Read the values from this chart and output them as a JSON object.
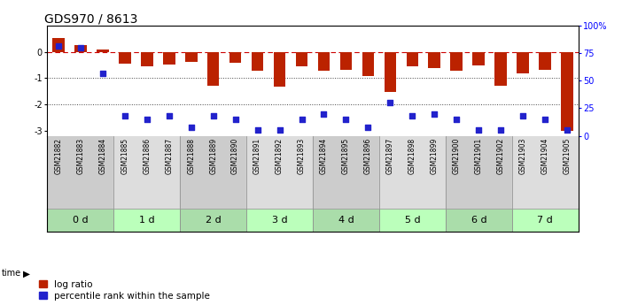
{
  "title": "GDS970 / 8613",
  "samples": [
    "GSM21882",
    "GSM21883",
    "GSM21884",
    "GSM21885",
    "GSM21886",
    "GSM21887",
    "GSM21888",
    "GSM21889",
    "GSM21890",
    "GSM21891",
    "GSM21892",
    "GSM21893",
    "GSM21894",
    "GSM21895",
    "GSM21896",
    "GSM21897",
    "GSM21898",
    "GSM21899",
    "GSM21900",
    "GSM21901",
    "GSM21902",
    "GSM21903",
    "GSM21904",
    "GSM21905"
  ],
  "log_ratio": [
    0.55,
    0.28,
    0.1,
    -0.45,
    -0.55,
    -0.48,
    -0.38,
    -1.28,
    -0.42,
    -0.72,
    -1.32,
    -0.55,
    -0.72,
    -0.68,
    -0.92,
    -1.52,
    -0.55,
    -0.62,
    -0.72,
    -0.52,
    -1.3,
    -0.82,
    -0.68,
    -3.0
  ],
  "percentile_rank": [
    82,
    80,
    57,
    18,
    15,
    18,
    8,
    18,
    15,
    5,
    5,
    15,
    20,
    15,
    8,
    30,
    18,
    20,
    15,
    5,
    5,
    18,
    15,
    5
  ],
  "time_group_idx": [
    0,
    0,
    0,
    1,
    1,
    1,
    2,
    2,
    2,
    3,
    3,
    3,
    4,
    4,
    4,
    5,
    5,
    5,
    6,
    6,
    6,
    7,
    7,
    7
  ],
  "time_unique": [
    "0 d",
    "1 d",
    "2 d",
    "3 d",
    "4 d",
    "5 d",
    "6 d",
    "7 d"
  ],
  "bar_color": "#BB2200",
  "point_color": "#2222CC",
  "xlab_col_even": "#CCCCCC",
  "xlab_col_odd": "#DDDDDD",
  "time_col_even": "#AADDAA",
  "time_col_odd": "#BBFFBB",
  "ylim_left": [
    -3.2,
    1.0
  ],
  "ylim_right": [
    0,
    100
  ],
  "yticks_left": [
    0,
    -1,
    -2,
    -3
  ],
  "ytick_labels_left": [
    "0",
    "-1",
    "-2",
    "-3"
  ],
  "yticks_right": [
    100,
    75,
    50,
    25,
    0
  ],
  "ytick_labels_right": [
    "100%",
    "75",
    "50",
    "25",
    "0"
  ],
  "zero_line_color": "#CC0000",
  "dotted_line_color": "#444444",
  "title_fontsize": 10,
  "tick_fontsize": 7,
  "label_fontsize": 5.5,
  "time_fontsize": 8,
  "legend_fontsize": 7.5
}
